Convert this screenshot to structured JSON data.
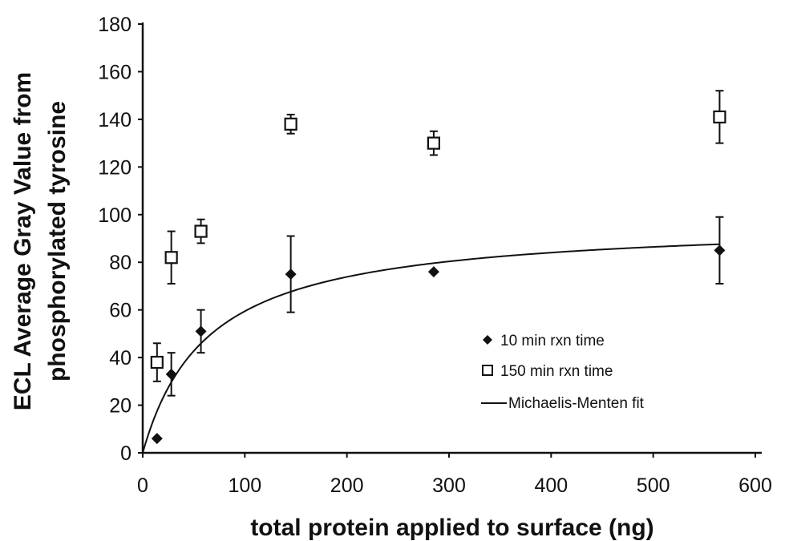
{
  "chart_data": {
    "type": "scatter",
    "title": "",
    "xlabel": "total protein applied to surface (ng)",
    "ylabel": [
      "ECL Average Gray Value from",
      "phosphorylated tyrosine"
    ],
    "xlim": [
      0,
      600
    ],
    "ylim": [
      0,
      180
    ],
    "xticks": [
      0,
      100,
      200,
      300,
      400,
      500,
      600
    ],
    "yticks": [
      0,
      20,
      40,
      60,
      80,
      100,
      120,
      140,
      160,
      180
    ],
    "grid": false,
    "legend_position": "lower-right",
    "series": [
      {
        "name": "10 min rxn time",
        "marker": "filled-diamond",
        "color": "#111111",
        "points": [
          {
            "x": 14,
            "y": 6,
            "err": 0
          },
          {
            "x": 28,
            "y": 33,
            "err": 9
          },
          {
            "x": 57,
            "y": 51,
            "err": 9
          },
          {
            "x": 145,
            "y": 75,
            "err": 16
          },
          {
            "x": 285,
            "y": 76,
            "err": 0
          },
          {
            "x": 565,
            "y": 85,
            "err": 14
          }
        ]
      },
      {
        "name": "150 min rxn time",
        "marker": "open-square",
        "color": "#111111",
        "points": [
          {
            "x": 14,
            "y": 38,
            "err": 8
          },
          {
            "x": 28,
            "y": 82,
            "err": 11
          },
          {
            "x": 57,
            "y": 93,
            "err": 5
          },
          {
            "x": 145,
            "y": 138,
            "err": 4
          },
          {
            "x": 285,
            "y": 130,
            "err": 5
          },
          {
            "x": 565,
            "y": 141,
            "err": 11
          }
        ]
      },
      {
        "name": "Michaelis-Menten fit",
        "marker": "line",
        "color": "#111111",
        "vmax": 97.5,
        "km": 64,
        "x_range": [
          0,
          565
        ]
      }
    ]
  }
}
